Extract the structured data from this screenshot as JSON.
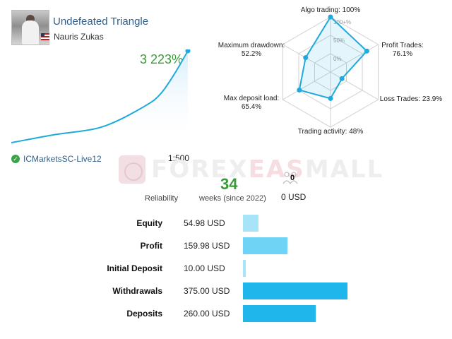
{
  "profile": {
    "title": "Undefeated Triangle",
    "author": "Nauris Zukas"
  },
  "growth": {
    "value": "3 223%"
  },
  "mini_chart": {
    "type": "area",
    "description_values": [
      0,
      3,
      6,
      9,
      11,
      13,
      16,
      22,
      30,
      39,
      49,
      72,
      100
    ]
  },
  "account": {
    "broker": "ICMarketsSC-Live12",
    "leverage": "1:500"
  },
  "radar": {
    "tick_labels": [
      "100+%",
      "50%",
      "0%"
    ],
    "axes": [
      {
        "label": "Algo trading: 100%",
        "value": 100
      },
      {
        "label": "Profit Trades: 76.1%",
        "value": 76.1
      },
      {
        "label": "Loss Trades: 23.9%",
        "value": 23.9
      },
      {
        "label": "Trading activity: 48%",
        "value": 48
      },
      {
        "label": "Max deposit load: 65.4%",
        "value": 65.4
      },
      {
        "label": "Maximum drawdown: 52.2%",
        "value": 52.2
      }
    ]
  },
  "watermark": {
    "part1": "FOREX",
    "part2": "EAS",
    "part3": "MALL"
  },
  "meta": {
    "reliability_label": "Reliability",
    "weeks_value": "34",
    "weeks_label": "weeks (since 2022)",
    "subscribers": "0",
    "subscribers_cost": "0 USD"
  },
  "stats": {
    "rows": [
      {
        "label": "Equity",
        "value": "54.98 USD",
        "amount": 54.98,
        "color": "#a8e4f8"
      },
      {
        "label": "Profit",
        "value": "159.98 USD",
        "amount": 159.98,
        "color": "#6fd3f5"
      },
      {
        "label": "Initial Deposit",
        "value": "10.00 USD",
        "amount": 10.0,
        "color": "#a8e4f8"
      },
      {
        "label": "Withdrawals",
        "value": "375.00 USD",
        "amount": 375.0,
        "color": "#1fb6ec"
      },
      {
        "label": "Deposits",
        "value": "260.00 USD",
        "amount": 260.0,
        "color": "#1fb6ec"
      }
    ],
    "max_amount": 375
  },
  "colors": {
    "accent": "#1fa9dc",
    "growth": "#3a9a3a",
    "link": "#2f5f8a"
  }
}
